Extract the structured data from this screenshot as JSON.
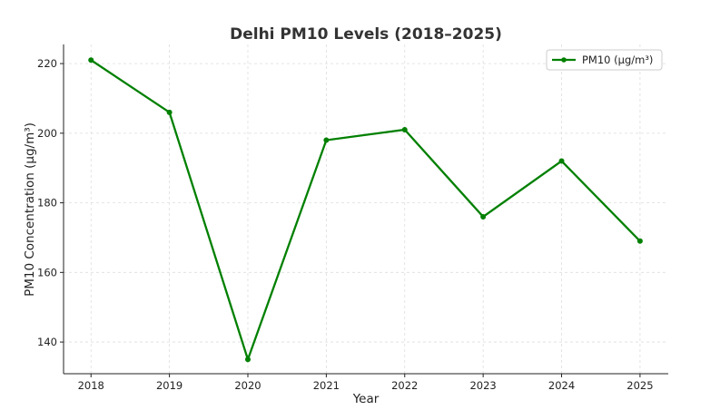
{
  "chart_data": {
    "type": "line",
    "title": "Delhi PM10 Levels (2018–2025)",
    "xlabel": "Year",
    "ylabel": "PM10 Concentration (μg/m³)",
    "x": [
      2018,
      2019,
      2020,
      2021,
      2022,
      2023,
      2024,
      2025
    ],
    "series": [
      {
        "name": "PM10 (μg/m³)",
        "color": "#008000",
        "values": [
          221,
          206,
          135,
          198,
          201,
          176,
          192,
          169
        ]
      }
    ],
    "xticks": [
      "2018",
      "2019",
      "2020",
      "2021",
      "2022",
      "2023",
      "2024",
      "2025"
    ],
    "yticks": [
      "140",
      "160",
      "180",
      "200",
      "220"
    ],
    "xlim": [
      2017.65,
      2025.36
    ],
    "ylim": [
      130.9,
      225.5
    ],
    "grid": true,
    "legend_position": "top-right"
  }
}
